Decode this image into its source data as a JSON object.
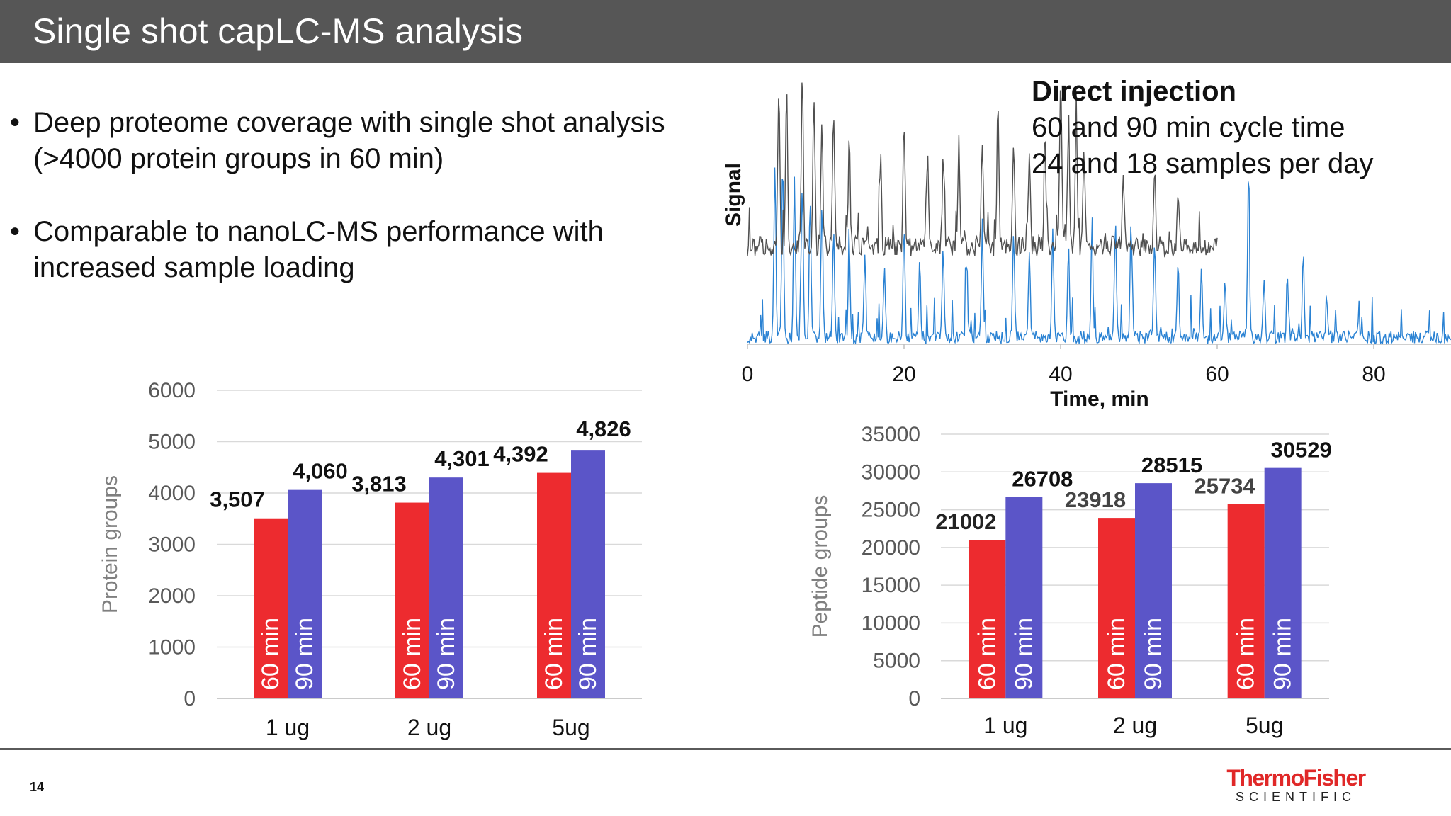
{
  "slide": {
    "title": "Single shot capLC-MS analysis",
    "page_number": "14"
  },
  "bullets": [
    {
      "line1": "Deep proteome coverage with single shot analysis",
      "line2": "(>4000 protein groups in 60 min)"
    },
    {
      "line1": "Comparable to nanoLC-MS performance with",
      "line2": "increased sample loading"
    }
  ],
  "injection_note": {
    "heading": "Direct injection",
    "line1": "60 and 90 min cycle time",
    "line2": "24 and 18 samples per day"
  },
  "logo": {
    "top": "ThermoFisher",
    "bottom": "SCIENTIFIC"
  },
  "colors": {
    "red": "#ed2b2f",
    "purple": "#5b55c8",
    "trace_blue": "#2a82d3",
    "trace_gray": "#505050"
  },
  "chart_data": [
    {
      "type": "line",
      "xlabel": "Time, min",
      "ylabel": "Signal",
      "xlim": [
        0,
        90
      ],
      "x_ticks": [
        "0",
        "20",
        "40",
        "60",
        "80"
      ],
      "series": [
        {
          "trace": "60 min run",
          "x_range": [
            0,
            60
          ],
          "peaks": [
            [
              4,
              0.95
            ],
            [
              5,
              1.0
            ],
            [
              7,
              1.0
            ],
            [
              8.5,
              0.9
            ],
            [
              9.5,
              0.75
            ],
            [
              11,
              0.8
            ],
            [
              13,
              0.7
            ],
            [
              17,
              0.55
            ],
            [
              20,
              0.75
            ],
            [
              23,
              0.6
            ],
            [
              25,
              0.55
            ],
            [
              27,
              0.6
            ],
            [
              30,
              0.65
            ],
            [
              32,
              0.9
            ],
            [
              34,
              0.6
            ],
            [
              36,
              0.58
            ],
            [
              38,
              0.7
            ],
            [
              40,
              0.95
            ],
            [
              41,
              0.75
            ],
            [
              42,
              0.85
            ],
            [
              43,
              0.55
            ],
            [
              48,
              0.45
            ],
            [
              52,
              0.45
            ],
            [
              55,
              0.3
            ]
          ]
        },
        {
          "trace": "90 min run",
          "x_range": [
            0,
            90
          ],
          "peaks": [
            [
              3.5,
              0.98
            ],
            [
              4.5,
              1.0
            ],
            [
              6,
              0.9
            ],
            [
              7,
              0.85
            ],
            [
              8,
              0.8
            ],
            [
              9.5,
              0.75
            ],
            [
              11,
              0.6
            ],
            [
              13,
              0.5
            ],
            [
              15,
              0.45
            ],
            [
              17.5,
              0.4
            ],
            [
              20,
              0.6
            ],
            [
              22,
              0.45
            ],
            [
              25,
              0.5
            ],
            [
              28,
              0.45
            ],
            [
              30,
              0.55
            ],
            [
              34,
              0.6
            ],
            [
              36,
              0.5
            ],
            [
              39,
              0.58
            ],
            [
              41,
              0.5
            ],
            [
              44,
              0.55
            ],
            [
              47,
              0.65
            ],
            [
              49,
              0.65
            ],
            [
              52,
              0.55
            ],
            [
              55,
              0.45
            ],
            [
              58,
              0.4
            ],
            [
              61,
              0.3
            ],
            [
              64,
              0.9
            ],
            [
              66,
              0.35
            ],
            [
              69,
              0.3
            ],
            [
              71,
              0.45
            ],
            [
              74,
              0.2
            ],
            [
              78,
              0.1
            ]
          ]
        }
      ]
    },
    {
      "type": "bar",
      "ylabel": "Protein groups",
      "categories": [
        "1 ug",
        "2 ug",
        "5ug"
      ],
      "ylim": [
        0,
        6000
      ],
      "y_ticks": [
        "0",
        "1000",
        "2000",
        "3000",
        "4000",
        "5000",
        "6000"
      ],
      "series": [
        {
          "name": "60 min",
          "values": [
            3507,
            3813,
            4392
          ],
          "labels": [
            "3,507",
            "3,813",
            "4,392"
          ]
        },
        {
          "name": "90 min",
          "values": [
            4060,
            4301,
            4826
          ],
          "labels": [
            "4,060",
            "4,301",
            "4,826"
          ]
        }
      ]
    },
    {
      "type": "bar",
      "ylabel": "Peptide groups",
      "categories": [
        "1 ug",
        "2 ug",
        "5ug"
      ],
      "ylim": [
        0,
        35000
      ],
      "y_ticks": [
        "0",
        "5000",
        "10000",
        "15000",
        "20000",
        "25000",
        "30000",
        "35000"
      ],
      "series": [
        {
          "name": "60 min",
          "values": [
            21002,
            23918,
            25734
          ],
          "labels": [
            "21002",
            "23918",
            "25734"
          ]
        },
        {
          "name": "90 min",
          "values": [
            26708,
            28515,
            30529
          ],
          "labels": [
            "26708",
            "28515",
            "30529"
          ]
        }
      ]
    }
  ]
}
